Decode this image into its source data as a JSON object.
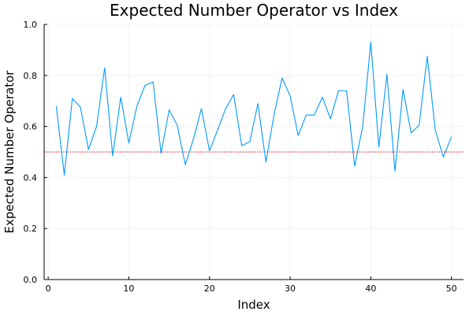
{
  "chart_data": {
    "type": "line",
    "title": "Expected Number Operator vs Index",
    "xlabel": "Index",
    "ylabel": "Expected Number Operator",
    "xlim": [
      -0.5,
      51.5
    ],
    "ylim": [
      0,
      1
    ],
    "xticks": [
      0,
      10,
      20,
      30,
      40,
      50
    ],
    "yticks": [
      0.0,
      0.2,
      0.4,
      0.6,
      0.8,
      1.0
    ],
    "ytick_labels": [
      "0.0",
      "0.2",
      "0.4",
      "0.6",
      "0.8",
      "1.0"
    ],
    "grid": true,
    "legend": "none",
    "series": [
      {
        "color": "#009AFA",
        "x": [
          1,
          2,
          3,
          4,
          5,
          6,
          7,
          8,
          9,
          10,
          11,
          12,
          13,
          14,
          15,
          16,
          17,
          18,
          19,
          20,
          21,
          22,
          23,
          24,
          25,
          26,
          27,
          28,
          29,
          30,
          31,
          32,
          33,
          34,
          35,
          36,
          37,
          38,
          39,
          40,
          41,
          42,
          43,
          44,
          45,
          46,
          47,
          48,
          49,
          50
        ],
        "y": [
          0.68,
          0.41,
          0.71,
          0.675,
          0.51,
          0.6,
          0.83,
          0.485,
          0.715,
          0.535,
          0.68,
          0.76,
          0.775,
          0.495,
          0.665,
          0.605,
          0.45,
          0.55,
          0.67,
          0.505,
          0.585,
          0.67,
          0.725,
          0.525,
          0.54,
          0.69,
          0.46,
          0.645,
          0.79,
          0.72,
          0.565,
          0.645,
          0.645,
          0.715,
          0.63,
          0.74,
          0.74,
          0.445,
          0.6,
          0.93,
          0.52,
          0.805,
          0.425,
          0.745,
          0.575,
          0.605,
          0.875,
          0.585,
          0.48,
          0.56
        ]
      }
    ],
    "reference_lines": [
      {
        "y": 0.5,
        "color": "#E6000C",
        "style": "dotted"
      }
    ]
  }
}
